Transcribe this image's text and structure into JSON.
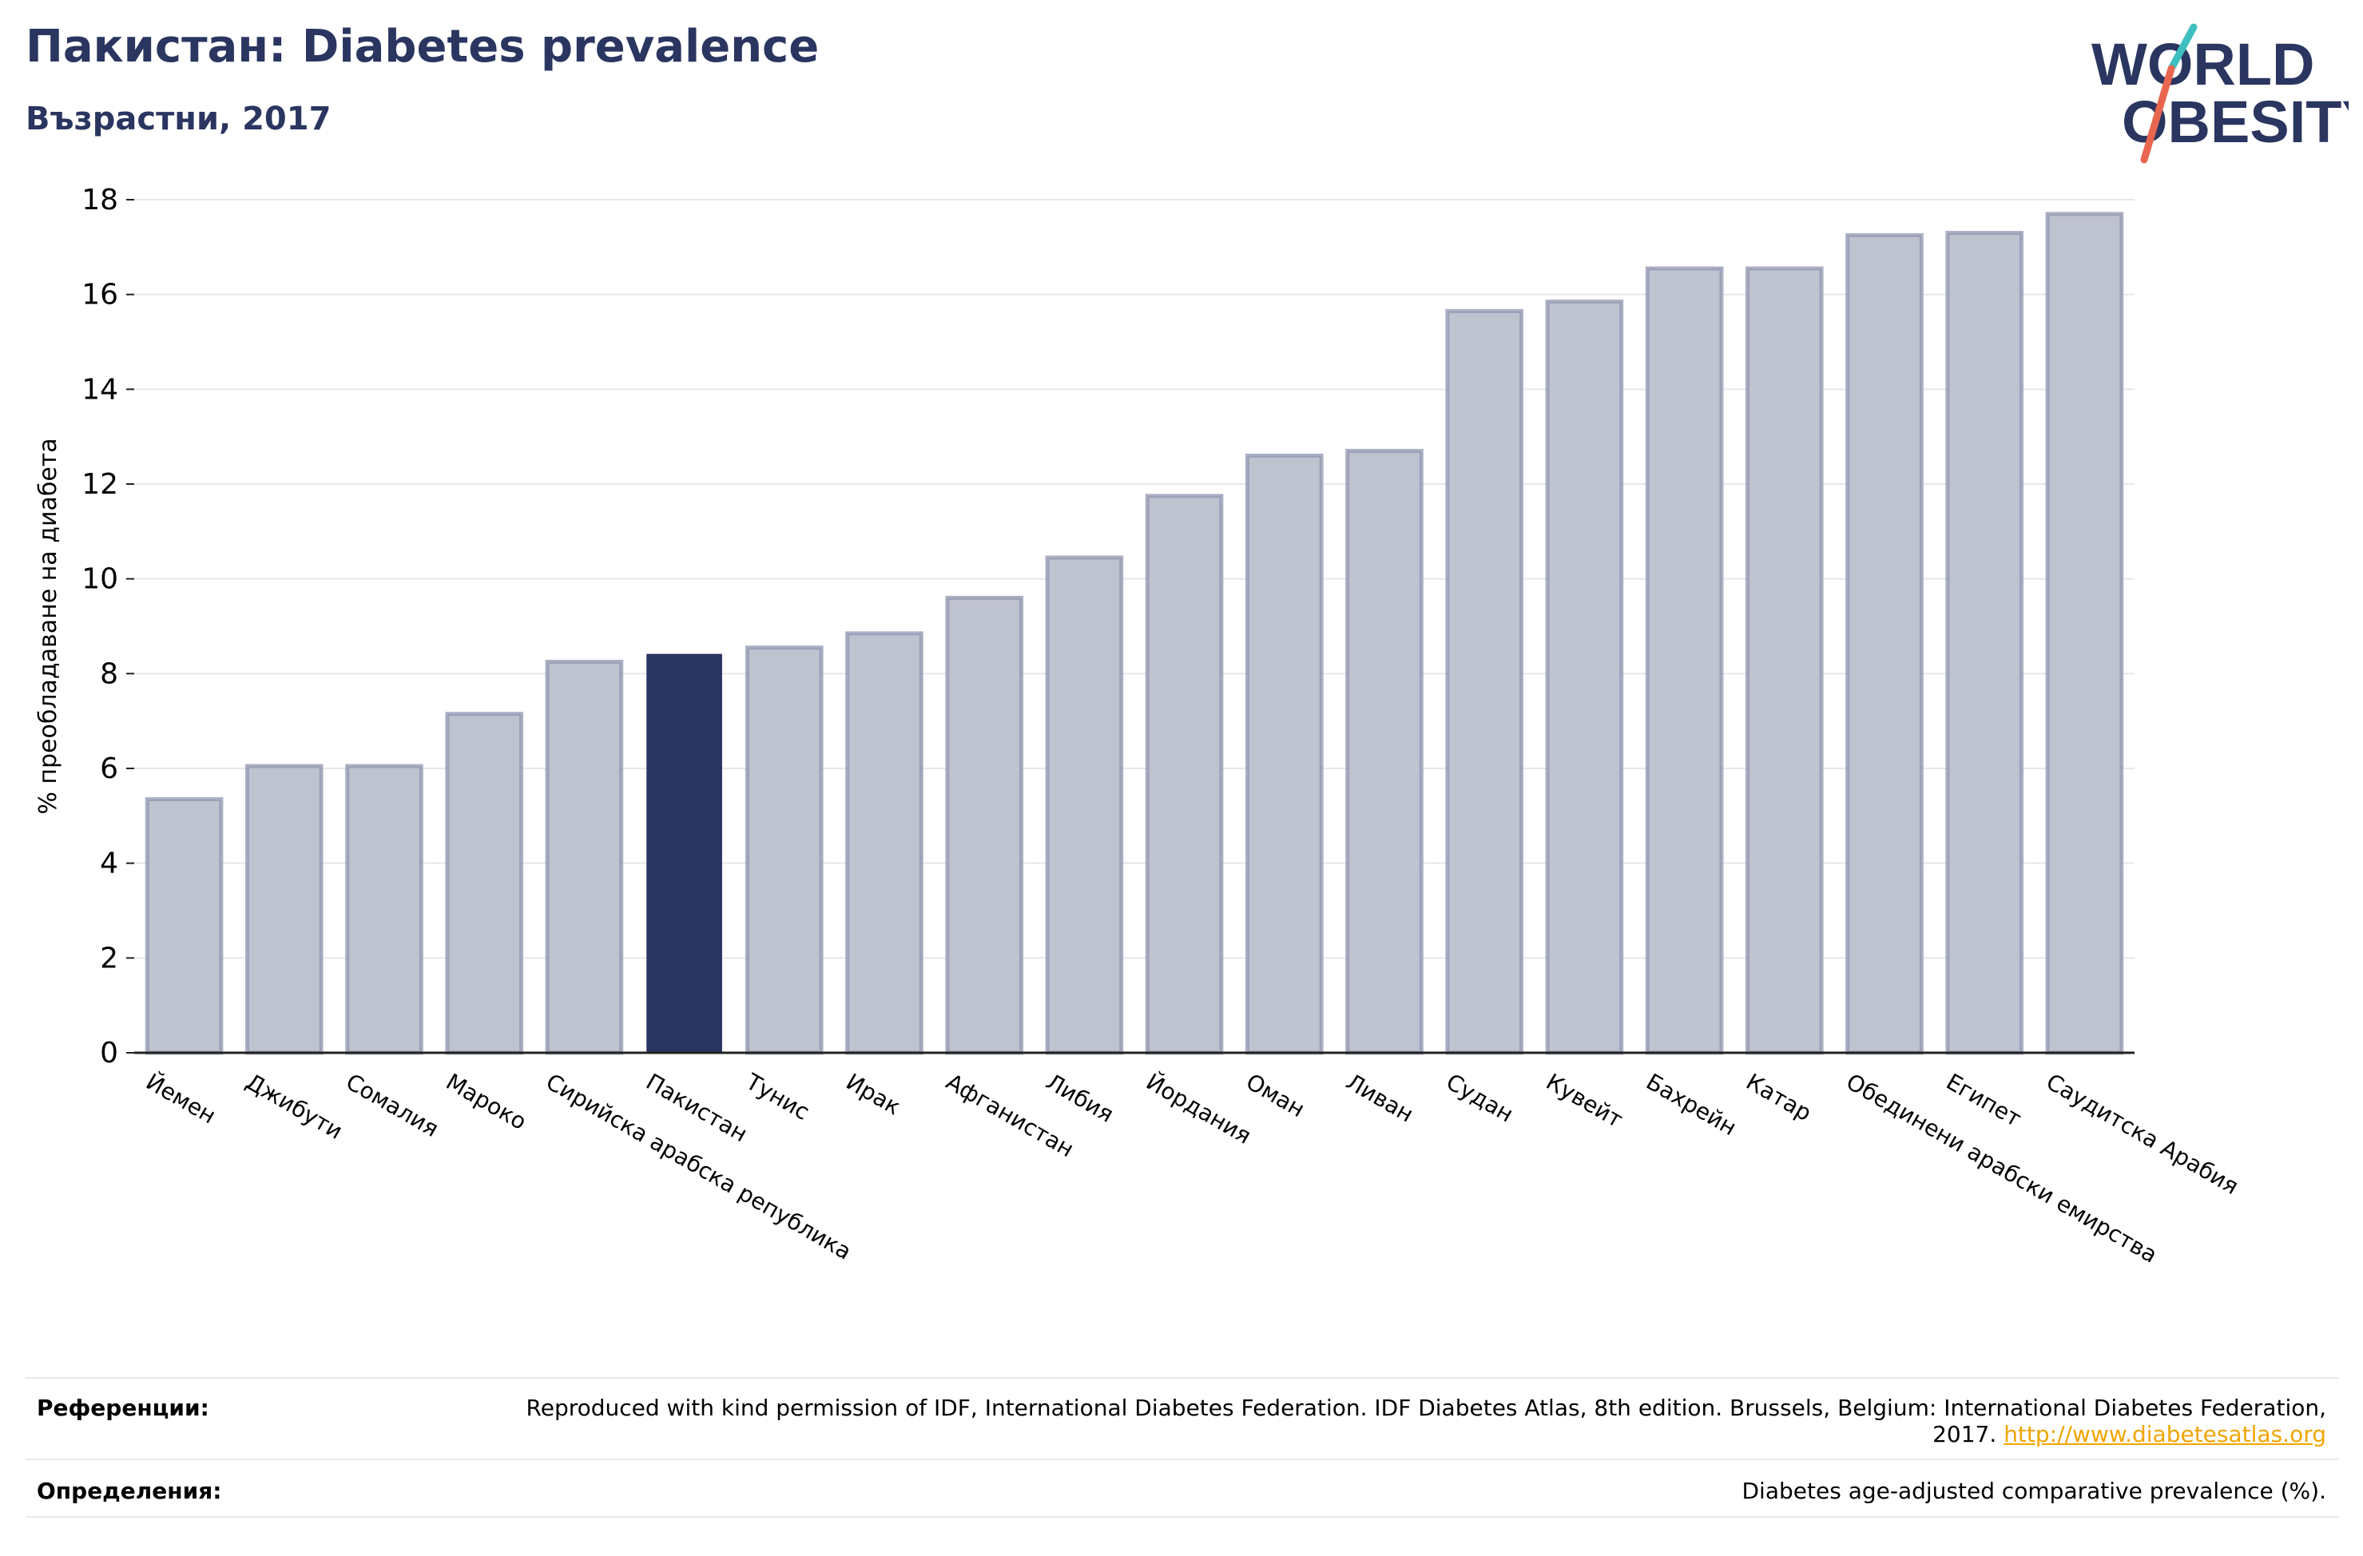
{
  "header": {
    "title": "Пакистан: Diabetes prevalence",
    "subtitle": "Възрастни, 2017"
  },
  "logo": {
    "line1": "WORLD",
    "line2": "OBESITY",
    "text_color": "#2a3560",
    "slash_color_top": "#3fbfbf",
    "slash_color_bottom": "#e8664f"
  },
  "chart_data": {
    "type": "bar",
    "ylabel": "% преобладаване на диабета",
    "ylim": [
      0,
      18
    ],
    "yticks": [
      0,
      2,
      4,
      6,
      8,
      10,
      12,
      14,
      16,
      18
    ],
    "grid": true,
    "categories": [
      "Йемен",
      "Джибути",
      "Сомалия",
      "Мароко",
      "Сирийска арабска република",
      "Пакистан",
      "Тунис",
      "Ирак",
      "Афганистан",
      "Либия",
      "Йордания",
      "Оман",
      "Ливан",
      "Судан",
      "Кувейт",
      "Бахрейн",
      "Катар",
      "Обединени арабски емирства",
      "Египет",
      "Саудитска Арабия"
    ],
    "values": [
      5.35,
      6.05,
      6.05,
      7.15,
      8.25,
      8.4,
      8.55,
      8.85,
      9.6,
      10.45,
      11.75,
      12.6,
      12.7,
      15.65,
      15.85,
      16.55,
      16.55,
      17.25,
      17.3,
      17.7
    ],
    "highlight": "Пакистан",
    "colors": {
      "bar": "#bfc2cf",
      "bar_border": "#9096b0",
      "highlight": "#2a3560",
      "grid": "#e6e8ee",
      "axis": "#222222"
    }
  },
  "footer": {
    "references_label": "Референции:",
    "references_text": "Reproduced with kind permission of IDF, International Diabetes Federation. IDF Diabetes Atlas, 8th edition. Brussels, Belgium: International Diabetes Federation, 2017.",
    "references_link": "http://www.diabetesatlas.org",
    "definitions_label": "Определения:",
    "definitions_text": "Diabetes age-adjusted comparative prevalence (%)."
  }
}
